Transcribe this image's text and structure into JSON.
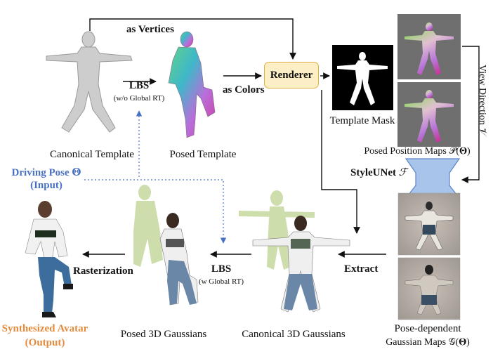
{
  "labels": {
    "as_vertices": "as Vertices",
    "lbs_1": "LBS",
    "lbs_1_sub": "(w/o Global RT)",
    "as_colors": "as Colors",
    "renderer": "Renderer",
    "canonical_template": "Canonical Template",
    "posed_template": "Posed Template",
    "template_mask": "Template Mask",
    "view_direction": "View Direction 𝒱",
    "posed_position_maps": "Posed Position Maps 𝒫(𝚯)",
    "driving_pose": "Driving Pose 𝚯",
    "driving_pose_sub": "(Input)",
    "styleunet": "StyleUNet",
    "styleunet_symbol": "ℱ",
    "rasterization": "Rasterization",
    "lbs_2": "LBS",
    "lbs_2_sub": "(w Global RT)",
    "extract": "Extract",
    "synthesized_avatar": "Synthesized Avatar",
    "synthesized_avatar_sub": "(Output)",
    "posed_3d_gaussians": "Posed 3D Gaussians",
    "canonical_3d_gaussians": "Canonical 3D Gaussians",
    "pose_dependent": "Pose-dependent",
    "gaussian_maps": "Gaussian Maps 𝒢(𝚯)"
  },
  "colors": {
    "renderer_fill": "#fdefc5",
    "renderer_border": "#e2b041",
    "styleunet_fill": "#a9c4ea",
    "styleunet_border": "#5a86c8",
    "driving_pose_text": "#4a72c4",
    "output_text": "#e38a3c",
    "template_gray": "#c8c8c8",
    "gaussian_green": "#b9cf8a",
    "map_background": "#a7a6a3"
  },
  "icons": [
    "human-mesh-icon",
    "position-map-icon",
    "gaussian-map-icon",
    "photo-avatar-icon"
  ]
}
